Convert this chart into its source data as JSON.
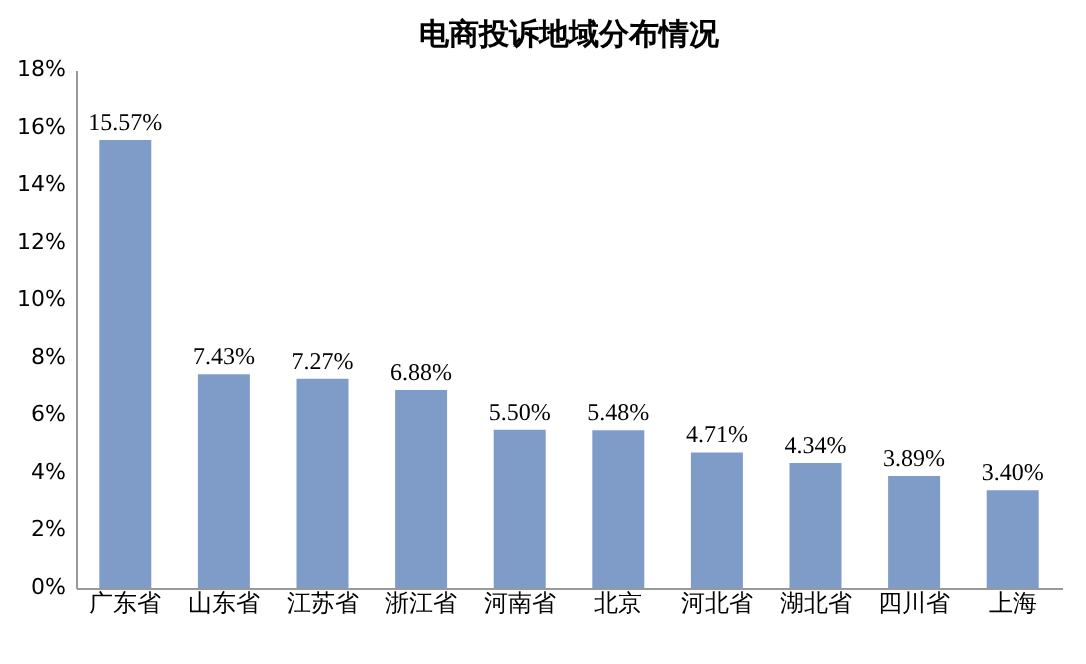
{
  "chart_data": {
    "type": "bar",
    "title": "电商投诉地域分布情况",
    "categories": [
      "广东省",
      "山东省",
      "江苏省",
      "浙江省",
      "河南省",
      "北京",
      "河北省",
      "湖北省",
      "四川省",
      "上海"
    ],
    "values": [
      15.57,
      7.43,
      7.27,
      6.88,
      5.5,
      5.48,
      4.71,
      4.34,
      3.89,
      3.4
    ],
    "value_labels": [
      "15.57%",
      "7.43%",
      "7.27%",
      "6.88%",
      "5.50%",
      "5.48%",
      "4.71%",
      "4.34%",
      "3.89%",
      "3.40%"
    ],
    "color": "#7f9cc8",
    "ylim": [
      0,
      18
    ],
    "yticks": [
      {
        "value": 0,
        "label": "0%"
      },
      {
        "value": 2,
        "label": "2%"
      },
      {
        "value": 4,
        "label": "4%"
      },
      {
        "value": 6,
        "label": "6%"
      },
      {
        "value": 8,
        "label": "8%"
      },
      {
        "value": 10,
        "label": "10%"
      },
      {
        "value": 12,
        "label": "12%"
      },
      {
        "value": 14,
        "label": "14%"
      },
      {
        "value": 16,
        "label": "16%"
      },
      {
        "value": 18,
        "label": "18%"
      }
    ],
    "grid": false
  }
}
